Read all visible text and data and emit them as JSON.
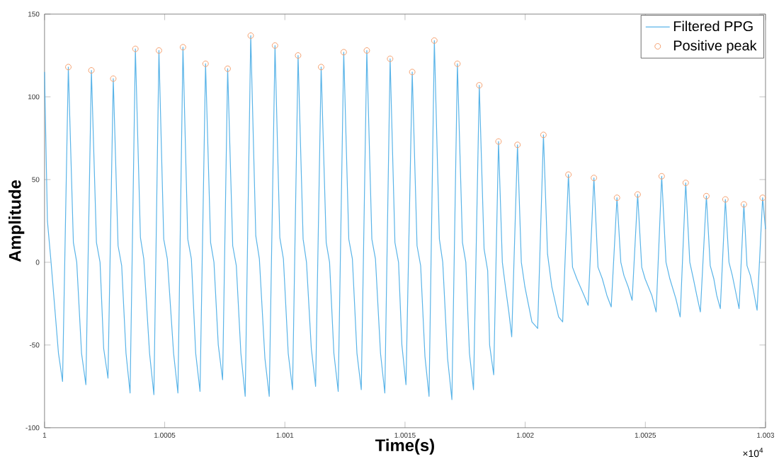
{
  "chart_data": {
    "type": "line",
    "xlabel": "Time(s)",
    "ylabel": "Amplitude",
    "xlim": [
      1,
      1.003
    ],
    "xticks": [
      1,
      1.0005,
      1.001,
      1.0015,
      1.002,
      1.0025,
      1.003
    ],
    "ylim": [
      -100,
      150
    ],
    "yticks": [
      -100,
      -50,
      0,
      50,
      100,
      150
    ],
    "legend": "top right",
    "annotations": [
      "×10$^{4}$"
    ],
    "series": [
      {
        "name": "Filtered PPG",
        "color": "#5ab4e8",
        "marker": "none",
        "x": [
          1,
          1.000012,
          1.000026,
          1.000058,
          1.000075,
          1.000099,
          1.00012,
          1.000134,
          1.000154,
          1.000172,
          1.000195,
          1.000216,
          1.000231,
          1.000246,
          1.000264,
          1.000286,
          1.000306,
          1.000321,
          1.000339,
          1.000356,
          1.000378,
          1.000399,
          1.000413,
          1.000437,
          1.000455,
          1.000476,
          1.000496,
          1.000511,
          1.000537,
          1.000555,
          1.000576,
          1.000596,
          1.000611,
          1.000629,
          1.000647,
          1.00067,
          1.000691,
          1.000705,
          1.000723,
          1.000741,
          1.000762,
          1.000783,
          1.000798,
          1.000817,
          1.000835,
          1.000858,
          1.000879,
          1.000894,
          1.000917,
          1.000935,
          1.000959,
          1.000979,
          1.000994,
          1.001014,
          1.001032,
          1.001055,
          1.001076,
          1.00109,
          1.00111,
          1.001128,
          1.001151,
          1.001172,
          1.001186,
          1.001204,
          1.001222,
          1.001245,
          1.001266,
          1.001281,
          1.0013,
          1.001318,
          1.001341,
          1.001362,
          1.001377,
          1.001398,
          1.001416,
          1.001438,
          1.001458,
          1.001473,
          1.001487,
          1.001504,
          1.00153,
          1.00155,
          1.001565,
          1.001583,
          1.0016,
          1.001622,
          1.001643,
          1.001657,
          1.001677,
          1.001695,
          1.001718,
          1.001739,
          1.001753,
          1.001768,
          1.001785,
          1.001809,
          1.001829,
          1.001844,
          1.001852,
          1.001869,
          1.001889,
          1.001905,
          1.001918,
          1.001932,
          1.001944,
          1.001968,
          1.001984,
          1.001999,
          1.002028,
          1.002052,
          1.002076,
          1.002093,
          1.002111,
          1.002139,
          1.002156,
          1.00218,
          1.002197,
          1.002215,
          1.002245,
          1.002262,
          1.002286,
          1.002303,
          1.002321,
          1.00234,
          1.002358,
          1.002382,
          1.002398,
          1.002411,
          1.002429,
          1.002445,
          1.002468,
          1.002485,
          1.002499,
          1.002527,
          1.002545,
          1.002568,
          1.002586,
          1.002602,
          1.002627,
          1.002645,
          1.002668,
          1.002685,
          1.0027,
          1.002714,
          1.002729,
          1.002754,
          1.00277,
          1.002785,
          1.002797,
          1.002812,
          1.002833,
          1.002848,
          1.002862,
          1.002876,
          1.00289,
          1.00291,
          1.002923,
          1.002937,
          1.002951,
          1.002965,
          1.002988,
          1.003
        ],
        "values": [
          115,
          25,
          2,
          -55,
          -72,
          118,
          12,
          0,
          -55,
          -74,
          116,
          12,
          0,
          -52,
          -70,
          111,
          10,
          -2,
          -55,
          -79,
          129,
          15,
          2,
          -55,
          -80,
          128,
          14,
          2,
          -55,
          -79,
          130,
          14,
          2,
          -55,
          -78,
          120,
          12,
          0,
          -50,
          -71,
          117,
          10,
          -2,
          -55,
          -81,
          137,
          16,
          2,
          -58,
          -81,
          131,
          15,
          2,
          -55,
          -77,
          125,
          14,
          0,
          -52,
          -75,
          118,
          12,
          0,
          -55,
          -78,
          127,
          14,
          2,
          -55,
          -77,
          128,
          14,
          2,
          -55,
          -79,
          123,
          12,
          0,
          -50,
          -74,
          115,
          10,
          -2,
          -57,
          -81,
          134,
          14,
          0,
          -58,
          -83,
          120,
          12,
          0,
          -55,
          -77,
          107,
          8,
          -5,
          -50,
          -68,
          73,
          0,
          -15,
          -30,
          -45,
          71,
          0,
          -15,
          -36,
          -40,
          77,
          5,
          -15,
          -33,
          -36,
          53,
          -3,
          -10,
          -20,
          -26,
          51,
          -3,
          -10,
          -20,
          -27,
          39,
          0,
          -8,
          -15,
          -23,
          41,
          -3,
          -10,
          -20,
          -30,
          52,
          0,
          -10,
          -22,
          -33,
          48,
          0,
          -10,
          -20,
          -30,
          40,
          -2,
          -10,
          -20,
          -28,
          38,
          0,
          -8,
          -18,
          -28,
          35,
          -2,
          -8,
          -18,
          -29,
          39,
          20
        ]
      },
      {
        "name": "Positive peak",
        "type": "scatter",
        "color": "#f4a070",
        "marker": "circle",
        "x": [
          1.000099,
          1.000195,
          1.000286,
          1.000378,
          1.000476,
          1.000576,
          1.00067,
          1.000762,
          1.000858,
          1.000959,
          1.001055,
          1.001151,
          1.001245,
          1.001341,
          1.001438,
          1.00153,
          1.001622,
          1.001718,
          1.001809,
          1.001889,
          1.001968,
          1.002076,
          1.00218,
          1.002286,
          1.002382,
          1.002468,
          1.002568,
          1.002668,
          1.002754,
          1.002833,
          1.00291,
          1.002988
        ],
        "values": [
          118,
          116,
          111,
          129,
          128,
          130,
          120,
          117,
          137,
          131,
          125,
          118,
          127,
          128,
          123,
          115,
          134,
          120,
          107,
          73,
          71,
          77,
          53,
          51,
          39,
          41,
          52,
          48,
          40,
          38,
          35,
          39
        ]
      }
    ]
  }
}
